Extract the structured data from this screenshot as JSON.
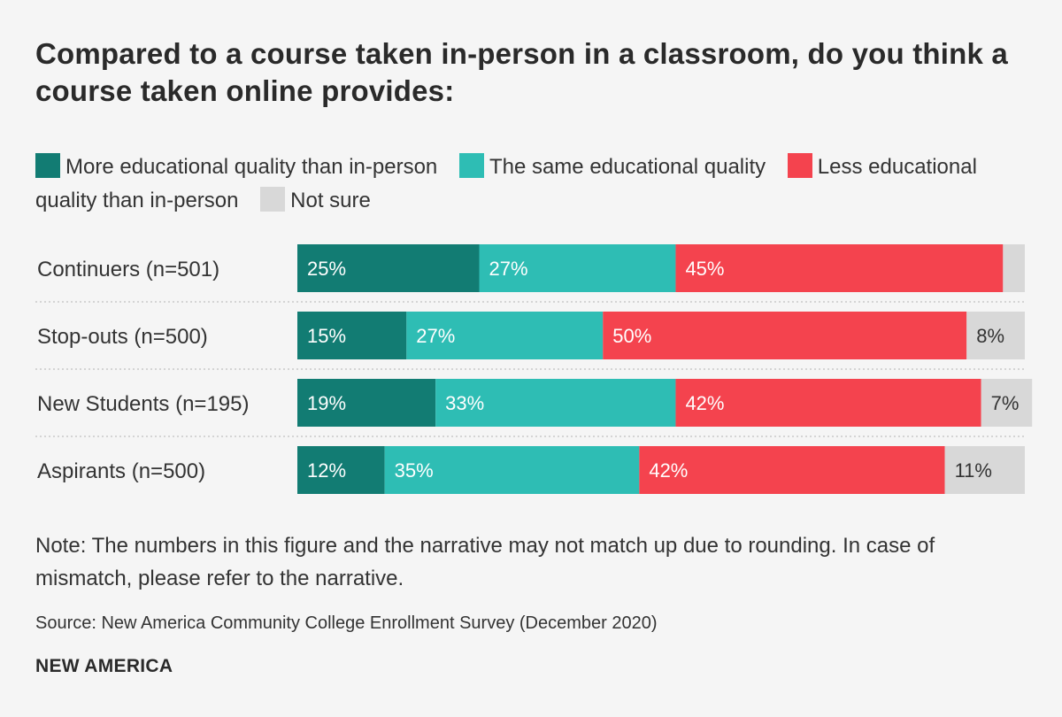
{
  "title": "Compared to a course taken in-person in a classroom, do you think a course taken online provides:",
  "legend": [
    {
      "label": "More educational quality than in-person",
      "color": "#127c73"
    },
    {
      "label": "The same educational quality",
      "color": "#2ebdb4"
    },
    {
      "label": "Less educational quality than in-person",
      "color": "#f4434e"
    },
    {
      "label": "Not sure",
      "color": "#d8d8d8"
    }
  ],
  "chart_data": {
    "type": "bar",
    "orientation": "horizontal",
    "stacked": true,
    "categories": [
      "Continuers (n=501)",
      "Stop-outs (n=500)",
      "New Students (n=195)",
      "Aspirants (n=500)"
    ],
    "series": [
      {
        "name": "More educational quality than in-person",
        "color": "#127c73",
        "values": [
          25,
          15,
          19,
          12
        ],
        "labels": [
          "25%",
          "15%",
          "19%",
          "12%"
        ]
      },
      {
        "name": "The same educational quality",
        "color": "#2ebdb4",
        "values": [
          27,
          27,
          33,
          35
        ],
        "labels": [
          "27%",
          "27%",
          "33%",
          "35%"
        ]
      },
      {
        "name": "Less educational quality than in-person",
        "color": "#f4434e",
        "values": [
          45,
          50,
          42,
          42
        ],
        "labels": [
          "45%",
          "50%",
          "42%",
          "42%"
        ]
      },
      {
        "name": "Not sure",
        "color": "#d8d8d8",
        "values": [
          3,
          8,
          7,
          11
        ],
        "labels": [
          "",
          "8%",
          "7%",
          "11%"
        ]
      }
    ],
    "xlim": [
      0,
      100
    ]
  },
  "note": "Note: The numbers in this figure and the narrative may not match up due to rounding. In case of mismatch, please refer to the narrative.",
  "source": "Source: New America Community College Enrollment Survey (December 2020)",
  "brand": "NEW AMERICA"
}
